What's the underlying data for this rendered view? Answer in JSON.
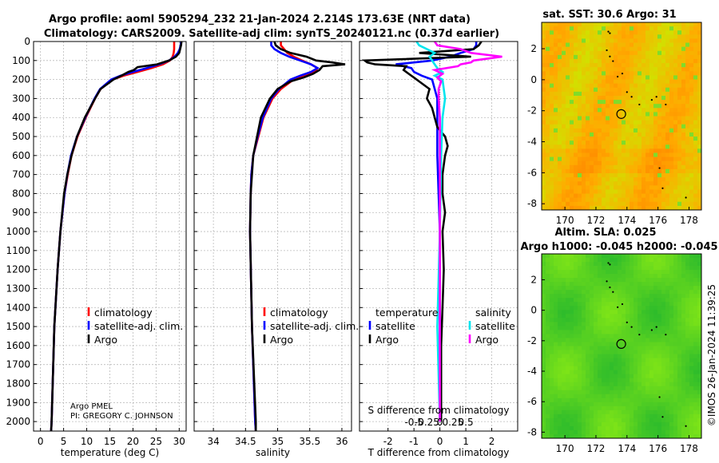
{
  "chart_data": {
    "type": "line",
    "title_line1": "Argo profile: aoml 5905294_232 21-Jan-2024 2.214S 173.63E (NRT data)",
    "title_line2": "Climatology: CARS2009. Satellite-adj clim: synTS_20240121.nc (0.37d earlier)",
    "depth_ylim": [
      0,
      2050
    ],
    "depth_ticks": [
      0,
      100,
      200,
      300,
      400,
      500,
      600,
      700,
      800,
      900,
      1000,
      1100,
      1200,
      1300,
      1400,
      1500,
      1600,
      1700,
      1800,
      1900,
      2000
    ],
    "panels": [
      {
        "name": "temperature",
        "xlabel": "temperature (deg C)",
        "xlim": [
          -1.5,
          31.5
        ],
        "xticks": [
          "0",
          "5",
          "10",
          "15",
          "20",
          "25",
          "30"
        ],
        "xtick_values": [
          0,
          5,
          10,
          15,
          20,
          25,
          30
        ],
        "legend": [
          "climatology",
          "satellite-adj. clim.",
          "Argo"
        ],
        "series": [
          {
            "name": "climatology",
            "color": "#ff0000",
            "depth": [
              0,
              20,
              40,
              60,
              80,
              100,
              120,
              140,
              160,
              180,
              200,
              250,
              300,
              400,
              500,
              600,
              700,
              800,
              1000,
              1200,
              1500,
              2000,
              2050
            ],
            "values": [
              28.9,
              28.9,
              28.9,
              28.8,
              28.6,
              28.0,
              26.5,
              24.0,
              21.0,
              18.0,
              15.6,
              13.0,
              11.8,
              9.8,
              8.0,
              6.7,
              5.9,
              5.2,
              4.3,
              3.7,
              3.0,
              2.4,
              2.3
            ]
          },
          {
            "name": "satellite-adj. clim.",
            "color": "#0000ff",
            "depth": [
              0,
              20,
              40,
              60,
              80,
              100,
              120,
              140,
              160,
              180,
              200,
              250,
              300,
              400,
              500,
              600,
              700,
              800,
              1000,
              1200,
              1500,
              2000,
              2050
            ],
            "values": [
              30.4,
              30.3,
              30.1,
              29.7,
              29.0,
              27.8,
              25.6,
              23.0,
              20.0,
              17.3,
              15.3,
              12.9,
              11.7,
              9.7,
              7.9,
              6.6,
              5.8,
              5.2,
              4.3,
              3.7,
              3.0,
              2.4,
              2.3
            ]
          },
          {
            "name": "Argo",
            "color": "#000000",
            "depth": [
              0,
              20,
              40,
              60,
              80,
              100,
              120,
              135,
              150,
              160,
              180,
              200,
              250,
              300,
              400,
              500,
              600,
              700,
              800,
              1000,
              1200,
              1500,
              2000,
              2050
            ],
            "values": [
              30.5,
              30.4,
              30.2,
              30.0,
              29.3,
              27.8,
              25.2,
              21.0,
              20.2,
              19.0,
              17.5,
              15.8,
              13.0,
              11.8,
              9.6,
              7.9,
              6.7,
              5.8,
              5.1,
              4.3,
              3.7,
              3.0,
              2.4,
              2.3
            ]
          }
        ]
      },
      {
        "name": "salinity",
        "xlabel": "salinity",
        "xlim": [
          33.7,
          36.15
        ],
        "xticks": [
          "34",
          "34.5",
          "35",
          "35.5",
          "36"
        ],
        "xtick_values": [
          34,
          34.5,
          35,
          35.5,
          36
        ],
        "legend": [
          "climatology",
          "satellite-adj. clim.",
          "Argo"
        ],
        "series": [
          {
            "name": "climatology",
            "color": "#ff0000",
            "depth": [
              0,
              20,
              40,
              60,
              80,
              100,
              120,
              140,
              160,
              180,
              200,
              250,
              300,
              400,
              500,
              600,
              700,
              800,
              1000,
              1500,
              2000,
              2050
            ],
            "values": [
              35.05,
              35.05,
              35.1,
              35.15,
              35.25,
              35.38,
              35.52,
              35.62,
              35.58,
              35.42,
              35.25,
              35.05,
              34.92,
              34.78,
              34.7,
              34.62,
              34.59,
              34.58,
              34.57,
              34.6,
              34.65,
              34.66
            ]
          },
          {
            "name": "satellite-adj. clim.",
            "color": "#0000ff",
            "depth": [
              0,
              20,
              40,
              60,
              80,
              100,
              120,
              140,
              160,
              180,
              200,
              250,
              300,
              400,
              500,
              600,
              700,
              800,
              1000,
              1500,
              2000,
              2050
            ],
            "values": [
              34.9,
              34.9,
              34.95,
              35.05,
              35.18,
              35.35,
              35.52,
              35.62,
              35.52,
              35.35,
              35.2,
              35.02,
              34.9,
              34.77,
              34.69,
              34.62,
              34.59,
              34.58,
              34.57,
              34.6,
              34.65,
              34.66
            ]
          },
          {
            "name": "Argo",
            "color": "#000000",
            "depth": [
              0,
              20,
              40,
              60,
              80,
              100,
              110,
              120,
              130,
              150,
              170,
              190,
              210,
              250,
              300,
              400,
              500,
              600,
              700,
              800,
              1000,
              1500,
              2000,
              2050
            ],
            "values": [
              34.95,
              34.97,
              35.05,
              35.2,
              35.45,
              35.6,
              35.85,
              36.05,
              35.7,
              35.65,
              35.55,
              35.4,
              35.2,
              35.0,
              34.88,
              34.74,
              34.68,
              34.62,
              34.6,
              34.58,
              34.57,
              34.6,
              34.66,
              34.66
            ]
          }
        ]
      },
      {
        "name": "difference",
        "xlabel": "T difference from climatology",
        "xlabel_top": "S difference from climatology",
        "xlim": [
          -3.1,
          3.0
        ],
        "xticks": [
          "-2",
          "-1",
          "0",
          "1",
          "2"
        ],
        "xtick_values": [
          -2,
          -1,
          0,
          1,
          2
        ],
        "sticks": [
          "-0.5",
          "-0.25",
          "0",
          "0.25",
          "0.5"
        ],
        "stick_values": [
          -1.0,
          -0.5,
          0,
          0.5,
          1.0
        ],
        "legend_temperature_title": "temperature",
        "legend_salinity_title": "salinity",
        "legend_temperature": [
          "satellite",
          "Argo"
        ],
        "legend_salinity": [
          "satellite",
          "Argo"
        ],
        "series": [
          {
            "name": "T satellite",
            "color": "#0000ff",
            "depth": [
              0,
              20,
              40,
              60,
              80,
              100,
              120,
              140,
              160,
              180,
              200,
              300,
              400,
              600,
              1000,
              2000
            ],
            "values": [
              1.4,
              1.4,
              1.3,
              0.8,
              0.4,
              -0.3,
              -1.7,
              -1.1,
              -1.0,
              -0.7,
              -0.3,
              -0.1,
              -0.1,
              -0.1,
              0,
              0
            ]
          },
          {
            "name": "T Argo",
            "color": "#000000",
            "depth": [
              0,
              20,
              40,
              60,
              80,
              100,
              110,
              120,
              130,
              150,
              170,
              190,
              210,
              250,
              300,
              350,
              400,
              450,
              500,
              550,
              600,
              650,
              700,
              800,
              900,
              1000,
              1200,
              1400,
              1600,
              2000
            ],
            "values": [
              1.6,
              1.5,
              1.3,
              -0.8,
              1.2,
              -2.9,
              -2.8,
              -2.5,
              -1.3,
              -1.4,
              -1.2,
              -1.0,
              -0.8,
              -0.4,
              -0.5,
              -0.3,
              -0.2,
              -0.1,
              0.2,
              0.3,
              0.2,
              0.15,
              0.1,
              0.1,
              0.2,
              0.1,
              0.15,
              0.1,
              0.05,
              0.05
            ]
          },
          {
            "name": "S satellite",
            "color": "#00e5ee",
            "depth": [
              0,
              20,
              40,
              60,
              80,
              100,
              120,
              140,
              160,
              180,
              200,
              300,
              400,
              600,
              1000,
              1500,
              2000
            ],
            "values": [
              -0.9,
              -0.8,
              -0.5,
              -0.2,
              -0.4,
              -0.3,
              -0.2,
              -0.1,
              0.1,
              -0.2,
              0.1,
              0.2,
              0.1,
              0.05,
              0,
              -0.1,
              0
            ]
          },
          {
            "name": "S Argo",
            "color": "#ff00ff",
            "depth": [
              0,
              20,
              40,
              60,
              80,
              100,
              110,
              120,
              130,
              150,
              170,
              190,
              210,
              250,
              300,
              400,
              500,
              600,
              800,
              1000,
              1500,
              2000
            ],
            "values": [
              -0.2,
              -0.1,
              0.8,
              1.2,
              2.4,
              1.3,
              1.2,
              0.8,
              0.7,
              -0.2,
              0.1,
              -0.1,
              0.05,
              -0.05,
              -0.05,
              0,
              0,
              0,
              0,
              0,
              0,
              0
            ]
          }
        ]
      }
    ],
    "maps": [
      {
        "title": "sat. SST: 30.6 Argo: 31",
        "xticks": [
          "170",
          "172",
          "174",
          "176",
          "178"
        ],
        "xtick_values": [
          170,
          172,
          174,
          176,
          178
        ],
        "yticks": [
          "2",
          "0",
          "-2",
          "-4",
          "-6",
          "-8"
        ],
        "ytick_values": [
          2,
          0,
          -2,
          -4,
          -6,
          -8
        ],
        "xlim": [
          168.5,
          178.8
        ],
        "ylim": [
          -8.4,
          3.7
        ],
        "marker": [
          173.63,
          -2.214
        ],
        "colormap": "sst"
      },
      {
        "title_line1": "Altim. SLA: 0.025",
        "title_line2": "Argo h1000: -0.045 h2000: -0.045",
        "xticks": [
          "170",
          "172",
          "174",
          "176",
          "178"
        ],
        "xtick_values": [
          170,
          172,
          174,
          176,
          178
        ],
        "yticks": [
          "2",
          "0",
          "-2",
          "-4",
          "-6",
          "-8"
        ],
        "ytick_values": [
          2,
          0,
          -2,
          -4,
          -6,
          -8
        ],
        "xlim": [
          168.5,
          178.8
        ],
        "ylim": [
          -8.4,
          3.7
        ],
        "marker": [
          173.63,
          -2.214
        ],
        "colormap": "sla"
      }
    ],
    "annotation_operator": "Argo PMEL",
    "annotation_pi": "PI: GREGORY C. JOHNSON",
    "watermark": "©IMOS 26-Jan-2024 11:39:25"
  }
}
